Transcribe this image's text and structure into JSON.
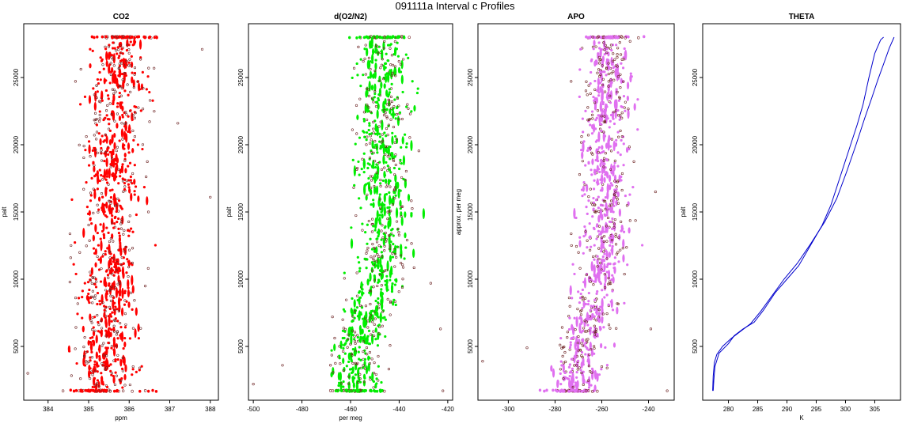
{
  "figure": {
    "title": "091111a   Interval c Profiles"
  },
  "chart_data": [
    {
      "type": "scatter",
      "title": "CO2",
      "xlabel": "ppm",
      "ylabel": "palt",
      "xlim": [
        383.4,
        388.2
      ],
      "ylim": [
        1000,
        29000
      ],
      "xticks": [
        384,
        385,
        386,
        387,
        388
      ],
      "yticks": [
        5000,
        10000,
        15000,
        20000,
        25000
      ],
      "color": "#ff0000",
      "grid": false,
      "trend": [
        [
          1700,
          385.4
        ],
        [
          10000,
          385.5
        ],
        [
          20000,
          385.6
        ],
        [
          28000,
          385.9
        ]
      ],
      "spread": 0.55,
      "outliers": [
        [
          388.0,
          16100
        ],
        [
          387.2,
          21600
        ],
        [
          383.5,
          3000
        ],
        [
          387.8,
          27100
        ]
      ]
    },
    {
      "type": "scatter",
      "title": "d(O2/N2)",
      "xlabel": "per meg",
      "ylabel": "palt",
      "xlim": [
        -502,
        -418
      ],
      "ylim": [
        1000,
        29000
      ],
      "xticks": [
        -500,
        -480,
        -460,
        -440,
        -420
      ],
      "yticks": [
        5000,
        10000,
        15000,
        20000,
        25000
      ],
      "color": "#00ee00",
      "grid": false,
      "trend": [
        [
          1700,
          -458
        ],
        [
          5000,
          -458
        ],
        [
          10000,
          -448
        ],
        [
          15000,
          -445
        ],
        [
          20000,
          -447
        ],
        [
          25000,
          -446
        ],
        [
          28000,
          -447
        ]
      ],
      "spread": 8,
      "outliers": [
        [
          -500,
          2200
        ],
        [
          -488,
          3600
        ],
        [
          -422,
          1700
        ],
        [
          -427,
          9700
        ],
        [
          -423,
          6300
        ]
      ]
    },
    {
      "type": "scatter",
      "title": "APO",
      "xlabel": "",
      "ylabel": "approx. per meg",
      "xlim": [
        -313,
        -229
      ],
      "ylim": [
        1000,
        29000
      ],
      "xticks": [
        -300,
        -280,
        -260,
        -240
      ],
      "yticks": [
        5000,
        10000,
        15000,
        20000,
        25000
      ],
      "color": "#e070f0",
      "grid": false,
      "trend": [
        [
          1700,
          -272
        ],
        [
          5000,
          -268
        ],
        [
          10000,
          -260
        ],
        [
          15000,
          -258
        ],
        [
          20000,
          -259
        ],
        [
          25000,
          -257
        ],
        [
          28000,
          -257
        ]
      ],
      "spread": 8,
      "outliers": [
        [
          -311,
          3900
        ],
        [
          -292,
          4900
        ],
        [
          -232,
          1700
        ],
        [
          -239,
          6300
        ],
        [
          -237,
          16500
        ]
      ]
    },
    {
      "type": "line",
      "title": "THETA",
      "xlabel": "K",
      "ylabel": "palt",
      "xlim": [
        275.6,
        309.4
      ],
      "ylim": [
        1000,
        29000
      ],
      "xticks": [
        280,
        285,
        290,
        295,
        300,
        305
      ],
      "yticks": [
        5000,
        10000,
        15000,
        20000,
        25000
      ],
      "color": "#0000cc",
      "grid": false,
      "series": [
        {
          "x": [
            277.4,
            277.5,
            277.7,
            278.4,
            280.0,
            281.0,
            282.5,
            284.4,
            286.0,
            288.0,
            290.0,
            292.0,
            294.0,
            296.0,
            297.5,
            299.0,
            300.5,
            302.0,
            303.0,
            304.0,
            305.0,
            306.0,
            306.5
          ],
          "y": [
            1700,
            2500,
            3500,
            4500,
            5200,
            5800,
            6300,
            6800,
            7700,
            9000,
            10000,
            11000,
            12500,
            14000,
            15500,
            17500,
            19500,
            21500,
            23000,
            25000,
            26800,
            27800,
            28000
          ]
        },
        {
          "x": [
            277.3,
            277.4,
            277.6,
            278.0,
            279.0,
            280.5,
            282.0,
            283.8,
            285.5,
            287.5,
            289.5,
            291.8,
            294.0,
            296.5,
            298.5,
            300.2,
            301.8,
            303.3,
            304.5,
            305.5,
            306.5,
            307.5,
            308.3
          ],
          "y": [
            1700,
            2800,
            3800,
            4400,
            5000,
            5600,
            6100,
            6700,
            7600,
            8800,
            10000,
            11200,
            12600,
            14300,
            16000,
            18000,
            20000,
            22000,
            23500,
            24800,
            26000,
            27200,
            28000
          ]
        }
      ]
    }
  ]
}
